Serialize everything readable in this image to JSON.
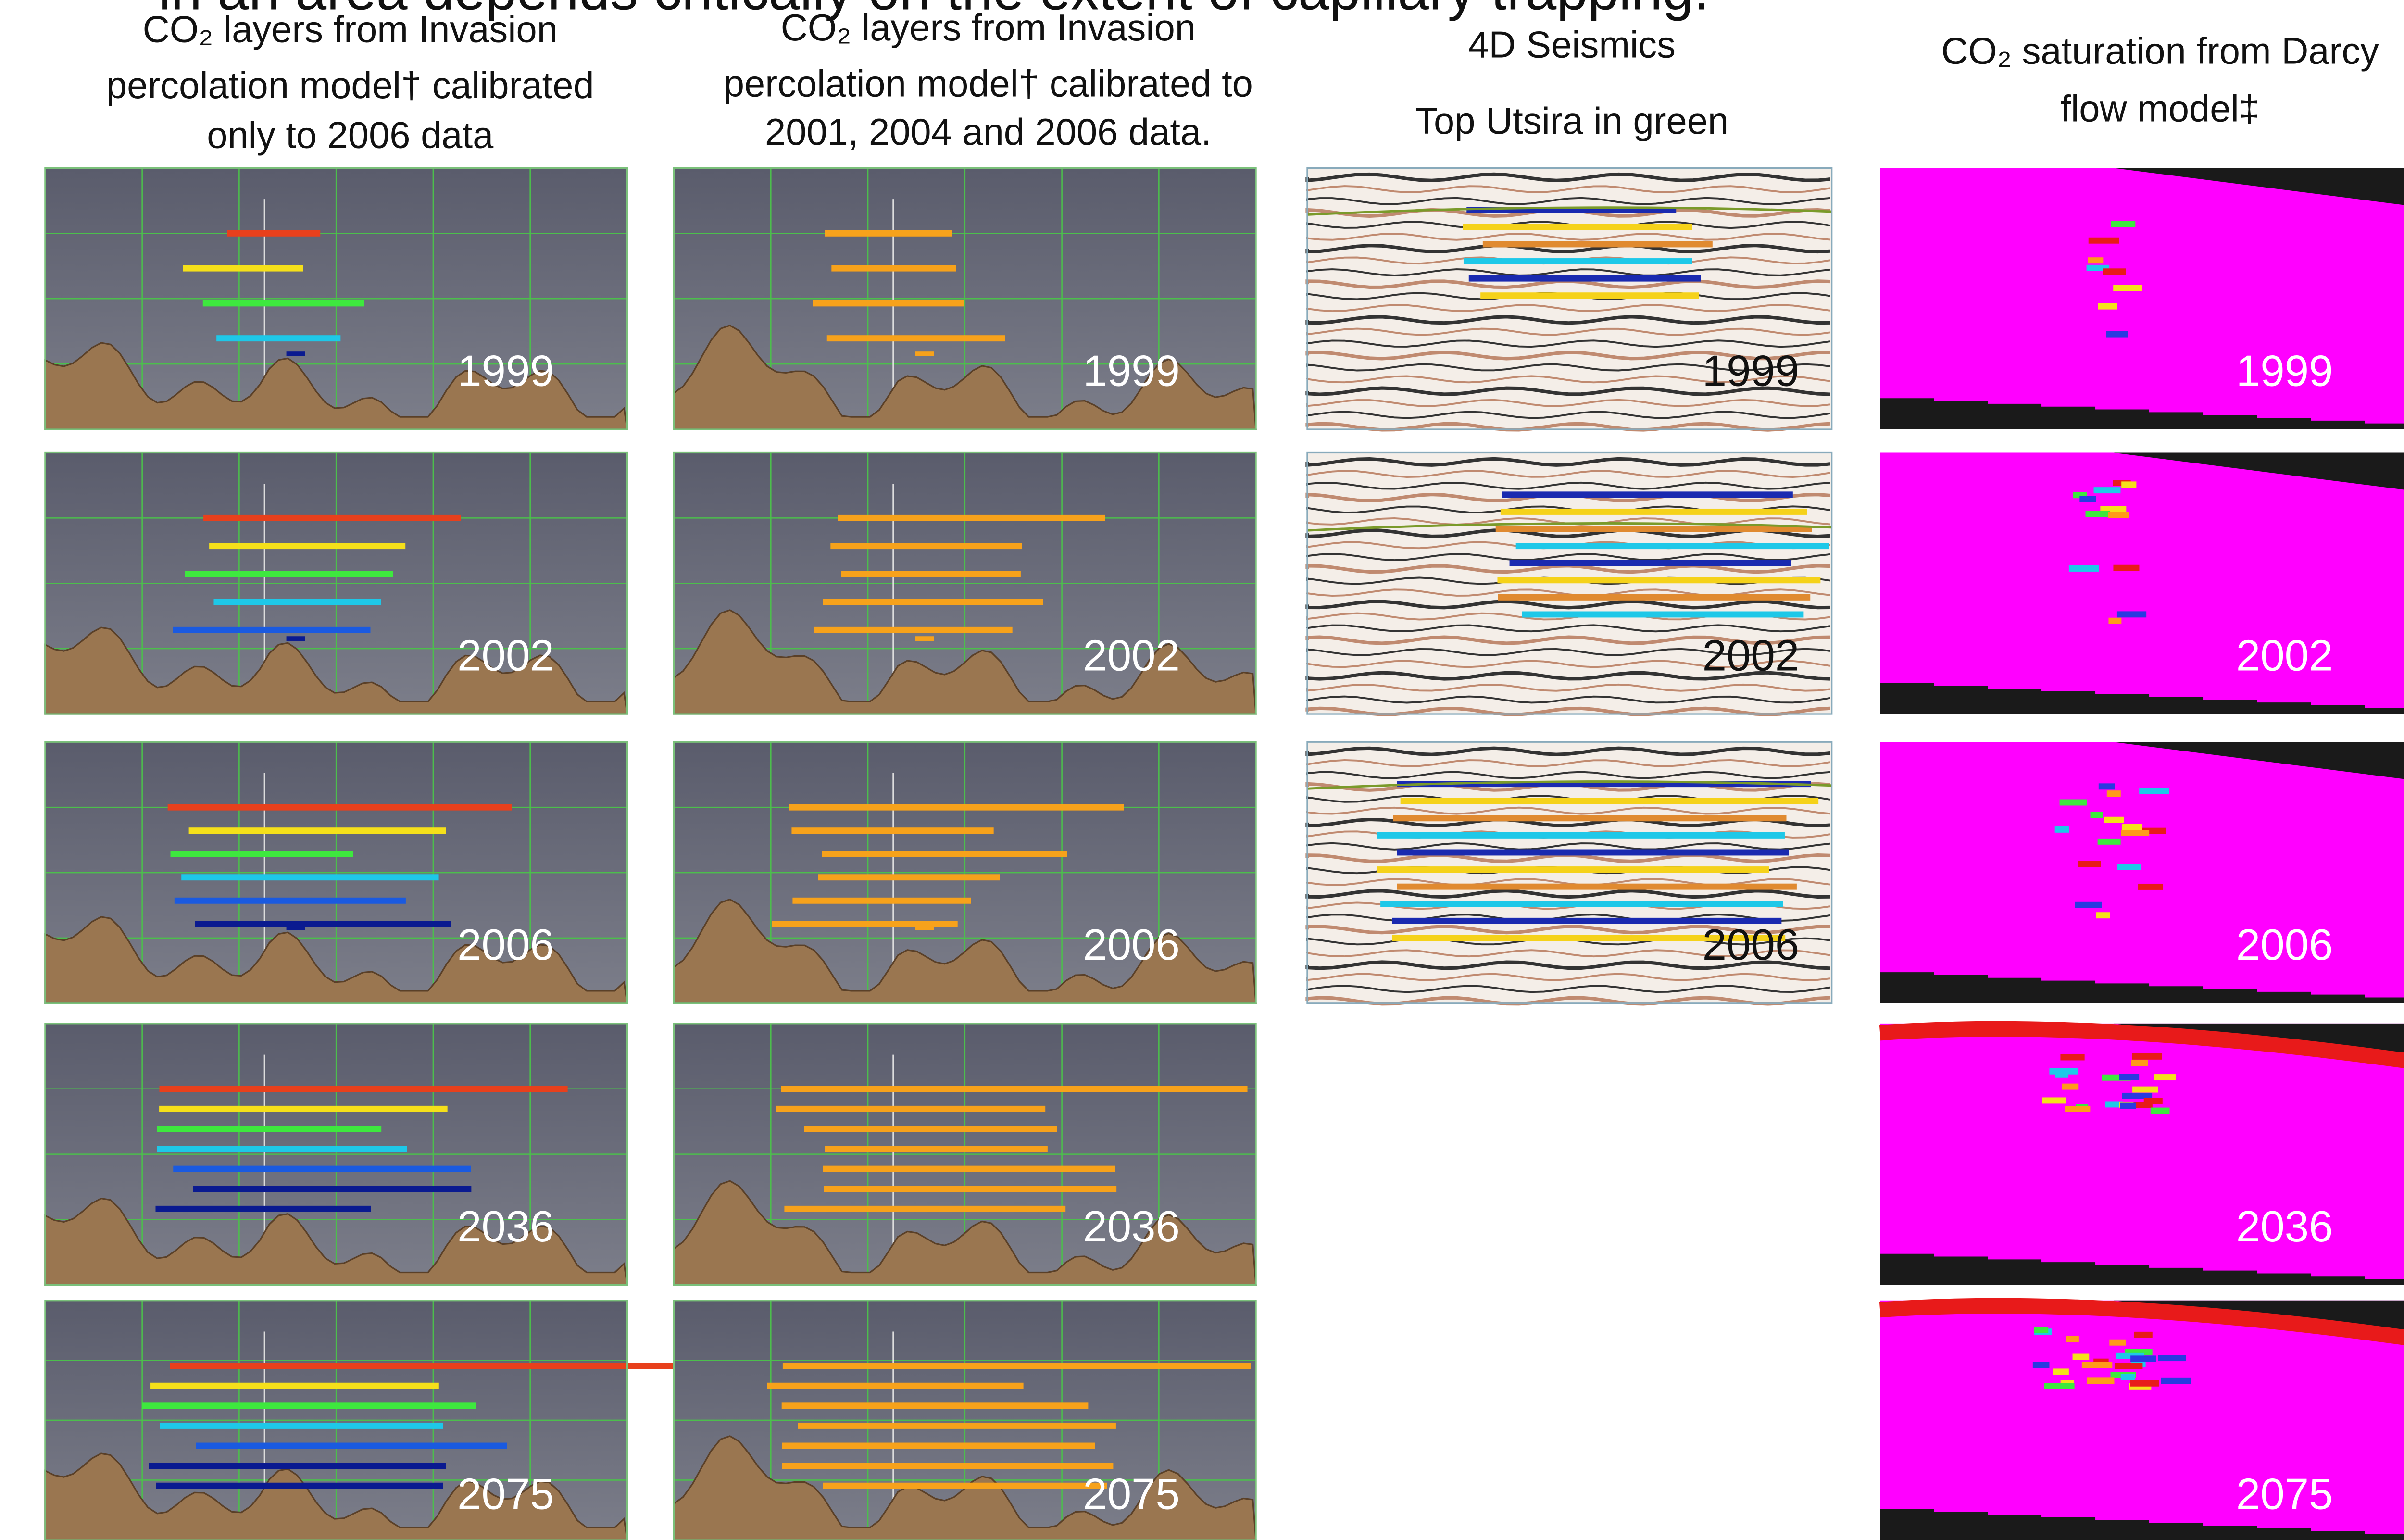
{
  "title": "in an area depends critically on the extent of capillary trapping.",
  "columns": [
    {
      "header_lines": [
        "CO₂ layers from Invasion",
        "percolation model† calibrated",
        "only to 2006 data"
      ],
      "panels": [
        "1999",
        "2002",
        "2006",
        "2036",
        "2075"
      ]
    },
    {
      "header_lines": [
        "CO₂ layers from Invasion",
        "percolation model† calibrated to",
        "2001, 2004 and 2006 data."
      ],
      "panels": [
        "1999",
        "2002",
        "2006",
        "2036",
        "2075"
      ]
    },
    {
      "header_lines": [
        "4D Seismics",
        "Top Utsira in green"
      ],
      "panels": [
        "1999",
        "2002",
        "2006"
      ]
    },
    {
      "header_lines": [
        "CO₂ saturation from Darcy",
        "flow model‡"
      ],
      "panels": [
        "1999",
        "2002",
        "2006",
        "2036",
        "2075"
      ]
    }
  ]
}
